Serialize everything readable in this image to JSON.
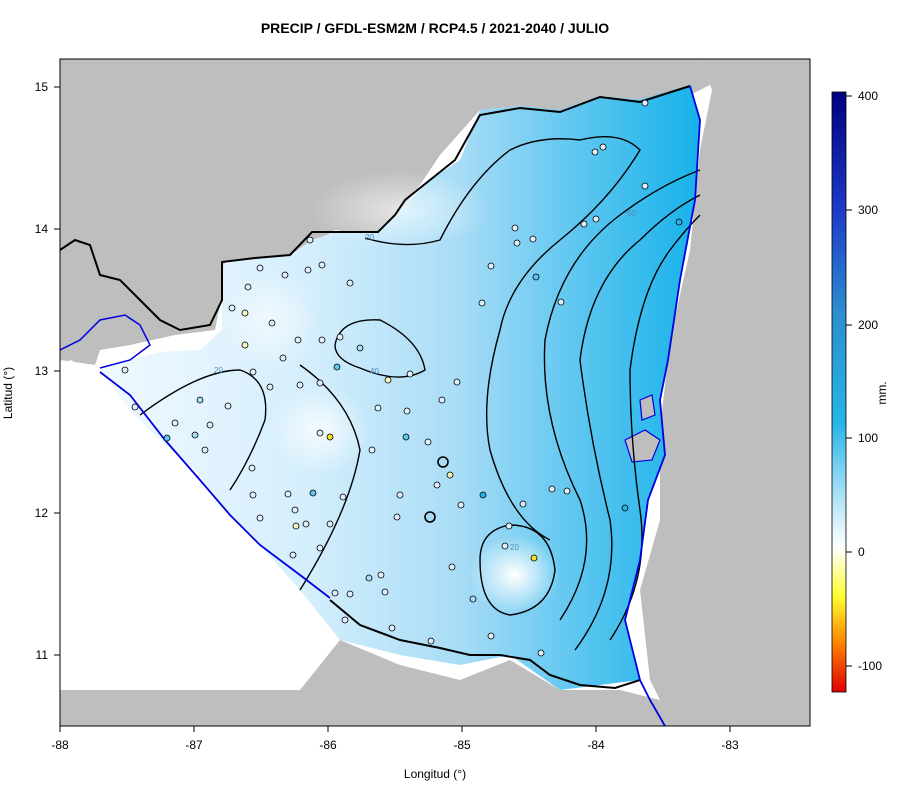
{
  "title": "PRECIP / GFDL-ESM2M / RCP4.5 / 2021-2040 / JULIO",
  "xlabel": "Longitud (°)",
  "ylabel": "Latitud (°)",
  "colorbar": {
    "label": "mm.",
    "ticks": [
      "400",
      "300",
      "200",
      "100",
      "0",
      "-100"
    ],
    "colors": [
      "#000080",
      "#1e3cc8",
      "#2c8fd0",
      "#26b4e8",
      "#c8ecfa",
      "#ffffff",
      "#ffff30",
      "#ff8000",
      "#e00000"
    ]
  },
  "axes": {
    "x_ticks": [
      "-88",
      "-87",
      "-86",
      "-85",
      "-84",
      "-83"
    ],
    "y_ticks": [
      "15",
      "14",
      "13",
      "12",
      "11"
    ],
    "xlim": [
      -88,
      -82.4
    ],
    "ylim": [
      10.5,
      15.2
    ]
  },
  "colors": {
    "land_bg": "#bebebe",
    "coastline": "#0000e0",
    "border": "#000000",
    "water": "#ffffff"
  },
  "contours": [
    {
      "label": "20"
    },
    {
      "label": "40"
    },
    {
      "label": "60"
    }
  ]
}
